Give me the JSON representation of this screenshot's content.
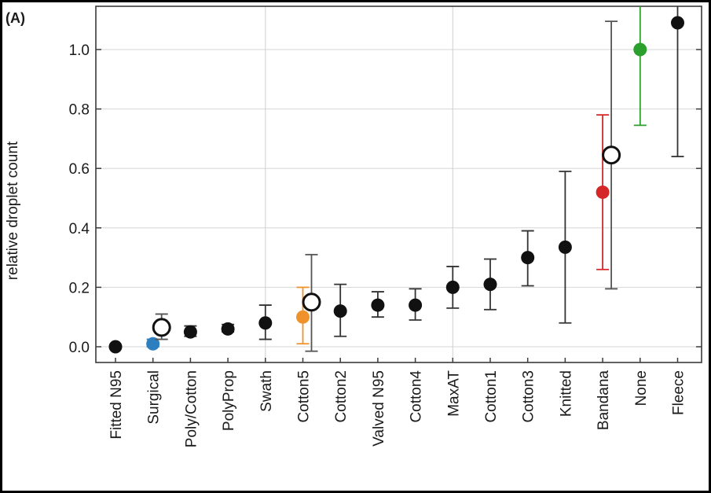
{
  "chart_data": {
    "type": "scatter",
    "panel_label": "(A)",
    "ylabel": "relative droplet count",
    "ylim": [
      -0.05,
      1.15
    ],
    "yticks": [
      0.0,
      0.2,
      0.4,
      0.6,
      0.8,
      1.0
    ],
    "ytick_labels": [
      "0.0",
      "0.2",
      "0.4",
      "0.6",
      "0.8",
      "1.0"
    ],
    "grid": "vertical lines at Swath and MaxAT",
    "categories": [
      "Fitted N95",
      "Surgical",
      "Poly/Cotton",
      "PolyProp",
      "Swath",
      "Cotton5",
      "Cotton2",
      "Valved N95",
      "Cotton4",
      "MaxAT",
      "Cotton1",
      "Cotton3",
      "Knitted",
      "Bandana",
      "None",
      "Fleece"
    ],
    "series": [
      {
        "marker": "filled-circle",
        "points": [
          {
            "category": "Fitted N95",
            "y": 0.0,
            "low": 0.0,
            "high": 0.0,
            "color": "#111111"
          },
          {
            "category": "Surgical",
            "y": 0.01,
            "low": 0.0,
            "high": 0.025,
            "color": "#2e7fc0"
          },
          {
            "category": "Poly/Cotton",
            "y": 0.05,
            "low": 0.035,
            "high": 0.07,
            "color": "#111111"
          },
          {
            "category": "PolyProp",
            "y": 0.06,
            "low": 0.05,
            "high": 0.075,
            "color": "#111111"
          },
          {
            "category": "Swath",
            "y": 0.08,
            "low": 0.025,
            "high": 0.14,
            "color": "#111111"
          },
          {
            "category": "Cotton5",
            "y": 0.1,
            "low": 0.01,
            "high": 0.2,
            "color": "#f0922b"
          },
          {
            "category": "Cotton2",
            "y": 0.12,
            "low": 0.035,
            "high": 0.21,
            "color": "#111111"
          },
          {
            "category": "Valved N95",
            "y": 0.14,
            "low": 0.1,
            "high": 0.185,
            "color": "#111111"
          },
          {
            "category": "Cotton4",
            "y": 0.14,
            "low": 0.09,
            "high": 0.195,
            "color": "#111111"
          },
          {
            "category": "MaxAT",
            "y": 0.2,
            "low": 0.13,
            "high": 0.27,
            "color": "#111111"
          },
          {
            "category": "Cotton1",
            "y": 0.21,
            "low": 0.125,
            "high": 0.295,
            "color": "#111111"
          },
          {
            "category": "Cotton3",
            "y": 0.3,
            "low": 0.205,
            "high": 0.39,
            "color": "#111111"
          },
          {
            "category": "Knitted",
            "y": 0.335,
            "low": 0.08,
            "high": 0.59,
            "color": "#111111"
          },
          {
            "category": "Bandana",
            "y": 0.52,
            "low": 0.26,
            "high": 0.78,
            "color": "#d62728"
          },
          {
            "category": "None",
            "y": 1.0,
            "low": 0.745,
            "high": 1.15,
            "color": "#2ca02c"
          },
          {
            "category": "Fleece",
            "y": 1.09,
            "low": 0.64,
            "high": 1.15,
            "color": "#111111"
          }
        ]
      },
      {
        "marker": "open-circle",
        "points": [
          {
            "category": "Surgical",
            "y": 0.065,
            "low": 0.025,
            "high": 0.11,
            "color": "#111111"
          },
          {
            "category": "Cotton5",
            "y": 0.15,
            "low": -0.015,
            "high": 0.31,
            "color": "#111111"
          },
          {
            "category": "Bandana",
            "y": 0.645,
            "low": 0.195,
            "high": 1.095,
            "color": "#111111"
          }
        ]
      }
    ]
  }
}
